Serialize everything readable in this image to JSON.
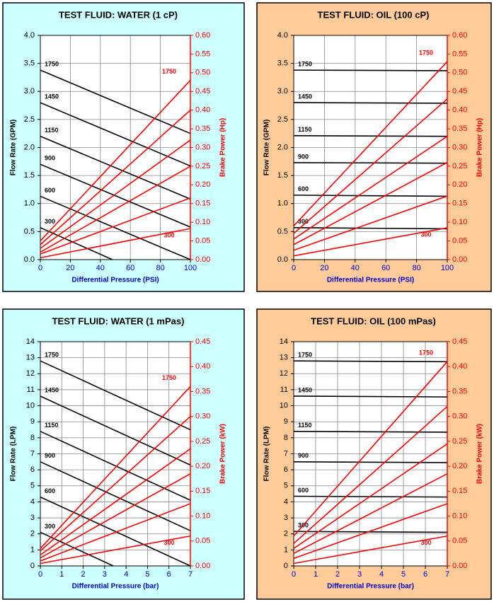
{
  "chart_data": [
    {
      "type": "line",
      "title": "TEST FLUID:  WATER (1 cP)",
      "background": "#ccffff",
      "x_label": "Differential Pressure (PSI)",
      "y_label": "Flow Rate (GPM)",
      "y2_label": "Brake Power (Hp)",
      "xlim": [
        0,
        100
      ],
      "xticks": [
        0,
        20,
        40,
        60,
        80,
        100
      ],
      "ylim": [
        0,
        4
      ],
      "yticks": [
        {
          "value": 0,
          "label": "0.0"
        },
        0.5,
        {
          "value": 1,
          "label": "1.0"
        },
        1.5,
        {
          "value": 2,
          "label": "2.0"
        },
        2.5,
        {
          "value": 3,
          "label": "3.0"
        },
        3.5,
        {
          "value": 4,
          "label": "4.0"
        }
      ],
      "y2lim": [
        0,
        0.6
      ],
      "y2ticks": [
        {
          "value": 0,
          "label": "0.00"
        },
        0.05,
        {
          "value": 0.1,
          "label": "0.10"
        },
        0.15,
        {
          "value": 0.2,
          "label": "0.20"
        },
        0.25,
        {
          "value": 0.3,
          "label": "0.30"
        },
        0.35,
        {
          "value": 0.4,
          "label": "0.40"
        },
        0.45,
        {
          "value": 0.5,
          "label": "0.50"
        },
        0.55,
        {
          "value": 0.6,
          "label": "0.60"
        }
      ],
      "grid": true,
      "series": [
        {
          "name": "1750",
          "color": "#000000",
          "x": [
            0,
            100
          ],
          "values": [
            3.38,
            2.25
          ]
        },
        {
          "name": "1450",
          "color": "#000000",
          "x": [
            0,
            100
          ],
          "values": [
            2.8,
            1.67
          ]
        },
        {
          "name": "1150",
          "color": "#000000",
          "x": [
            0,
            100
          ],
          "values": [
            2.2,
            1.08
          ]
        },
        {
          "name": "900",
          "color": "#000000",
          "x": [
            0,
            100
          ],
          "values": [
            1.7,
            0.58
          ]
        },
        {
          "name": "600",
          "color": "#000000",
          "x": [
            0,
            100
          ],
          "values": [
            1.13,
            0
          ]
        },
        {
          "name": "300",
          "color": "#000000",
          "x": [
            0,
            48
          ],
          "values": [
            0.57,
            0
          ]
        },
        {
          "name": "1750",
          "color": "#ff0000",
          "axis": "y2",
          "x": [
            0,
            100
          ],
          "values": [
            0.05,
            0.48
          ]
        },
        {
          "color": "#ff0000",
          "axis": "y2",
          "x": [
            0,
            100
          ],
          "values": [
            0.04,
            0.4
          ]
        },
        {
          "color": "#ff0000",
          "axis": "y2",
          "x": [
            0,
            100
          ],
          "values": [
            0.03,
            0.32
          ]
        },
        {
          "color": "#ff0000",
          "axis": "y2",
          "x": [
            0,
            100
          ],
          "values": [
            0.02,
            0.25
          ]
        },
        {
          "color": "#ff0000",
          "axis": "y2",
          "x": [
            0,
            100
          ],
          "values": [
            0.015,
            0.165
          ]
        },
        {
          "name": "300",
          "color": "#ff0000",
          "axis": "y2",
          "x": [
            0,
            100
          ],
          "values": [
            0.005,
            0.083
          ]
        }
      ]
    },
    {
      "type": "line",
      "title": "TEST FLUID:  OIL (100 cP)",
      "background": "#ffcc99",
      "x_label": "Differential Pressure (PSI)",
      "y_label": "Flow Rate (GPM)",
      "y2_label": "Brake Power (Hp)",
      "xlim": [
        0,
        100
      ],
      "xticks": [
        0,
        20,
        40,
        60,
        80,
        100
      ],
      "ylim": [
        0,
        4
      ],
      "yticks": [
        {
          "value": 0,
          "label": "0.0"
        },
        0.5,
        {
          "value": 1,
          "label": "1.0"
        },
        1.5,
        {
          "value": 2,
          "label": "2.0"
        },
        2.5,
        {
          "value": 3,
          "label": "3.0"
        },
        3.5,
        {
          "value": 4,
          "label": "4.0"
        }
      ],
      "y2lim": [
        0,
        0.6
      ],
      "y2ticks": [
        {
          "value": 0,
          "label": "0.00"
        },
        0.05,
        {
          "value": 0.1,
          "label": "0.10"
        },
        0.15,
        {
          "value": 0.2,
          "label": "0.20"
        },
        0.25,
        {
          "value": 0.3,
          "label": "0.30"
        },
        0.35,
        {
          "value": 0.4,
          "label": "0.40"
        },
        0.45,
        {
          "value": 0.5,
          "label": "0.50"
        },
        0.55,
        {
          "value": 0.6,
          "label": "0.60"
        }
      ],
      "grid": true,
      "series": [
        {
          "name": "1750",
          "color": "#000000",
          "x": [
            0,
            100
          ],
          "values": [
            3.38,
            3.37
          ]
        },
        {
          "name": "1450",
          "color": "#000000",
          "x": [
            0,
            100
          ],
          "values": [
            2.8,
            2.79
          ]
        },
        {
          "name": "1150",
          "color": "#000000",
          "x": [
            0,
            100
          ],
          "values": [
            2.21,
            2.2
          ]
        },
        {
          "name": "900",
          "color": "#000000",
          "x": [
            0,
            100
          ],
          "values": [
            1.73,
            1.72
          ]
        },
        {
          "name": "600",
          "color": "#000000",
          "x": [
            0,
            100
          ],
          "values": [
            1.15,
            1.13
          ]
        },
        {
          "name": "300",
          "color": "#000000",
          "x": [
            0,
            100
          ],
          "values": [
            0.57,
            0.55
          ]
        },
        {
          "name": "1750",
          "color": "#ff0000",
          "axis": "y2",
          "x": [
            0,
            100
          ],
          "values": [
            0.09,
            0.53
          ]
        },
        {
          "color": "#ff0000",
          "axis": "y2",
          "x": [
            0,
            100
          ],
          "values": [
            0.07,
            0.43
          ]
        },
        {
          "color": "#ff0000",
          "axis": "y2",
          "x": [
            0,
            100
          ],
          "values": [
            0.055,
            0.33
          ]
        },
        {
          "color": "#ff0000",
          "axis": "y2",
          "x": [
            0,
            100
          ],
          "values": [
            0.04,
            0.26
          ]
        },
        {
          "color": "#ff0000",
          "axis": "y2",
          "x": [
            0,
            100
          ],
          "values": [
            0.025,
            0.17
          ]
        },
        {
          "name": "300",
          "color": "#ff0000",
          "axis": "y2",
          "x": [
            0,
            100
          ],
          "values": [
            0.01,
            0.085
          ]
        }
      ]
    },
    {
      "type": "line",
      "title": "TEST FLUID:  WATER (1 mPas)",
      "background": "#ccffff",
      "x_label": "Differential Pressure (bar)",
      "y_label": "Flow Rate (LPM)",
      "y2_label": "Brake Power (kW)",
      "xlim": [
        0,
        7
      ],
      "xticks": [
        0,
        1,
        2,
        3,
        4,
        5,
        6,
        7
      ],
      "ylim": [
        0,
        14
      ],
      "yticks": [
        0,
        1,
        2,
        3,
        4,
        5,
        6,
        7,
        8,
        9,
        10,
        11,
        12,
        13,
        14
      ],
      "y2lim": [
        0,
        0.45
      ],
      "y2ticks": [
        {
          "value": 0,
          "label": "0.00"
        },
        0.05,
        {
          "value": 0.1,
          "label": "0.10"
        },
        0.15,
        {
          "value": 0.2,
          "label": "0.20"
        },
        0.25,
        {
          "value": 0.3,
          "label": "0.30"
        },
        0.35,
        {
          "value": 0.4,
          "label": "0.40"
        },
        0.45
      ],
      "grid": true,
      "series": [
        {
          "name": "1750",
          "color": "#000000",
          "x": [
            0,
            7
          ],
          "values": [
            12.8,
            8.5
          ]
        },
        {
          "name": "1450",
          "color": "#000000",
          "x": [
            0,
            7
          ],
          "values": [
            10.6,
            6.3
          ]
        },
        {
          "name": "1150",
          "color": "#000000",
          "x": [
            0,
            7
          ],
          "values": [
            8.4,
            4.1
          ]
        },
        {
          "name": "900",
          "color": "#000000",
          "x": [
            0,
            7
          ],
          "values": [
            6.5,
            2.2
          ]
        },
        {
          "name": "600",
          "color": "#000000",
          "x": [
            0,
            7
          ],
          "values": [
            4.3,
            0
          ]
        },
        {
          "name": "300",
          "color": "#000000",
          "x": [
            0,
            3.4
          ],
          "values": [
            2.1,
            0
          ]
        },
        {
          "name": "1750",
          "color": "#ff0000",
          "axis": "y2",
          "x": [
            0,
            7
          ],
          "values": [
            0.035,
            0.36
          ]
        },
        {
          "color": "#ff0000",
          "axis": "y2",
          "x": [
            0,
            7
          ],
          "values": [
            0.03,
            0.3
          ]
        },
        {
          "color": "#ff0000",
          "axis": "y2",
          "x": [
            0,
            7
          ],
          "values": [
            0.022,
            0.235
          ]
        },
        {
          "color": "#ff0000",
          "axis": "y2",
          "x": [
            0,
            7
          ],
          "values": [
            0.016,
            0.185
          ]
        },
        {
          "color": "#ff0000",
          "axis": "y2",
          "x": [
            0,
            7
          ],
          "values": [
            0.01,
            0.125
          ]
        },
        {
          "name": "300",
          "color": "#ff0000",
          "axis": "y2",
          "x": [
            0,
            7
          ],
          "values": [
            0.005,
            0.06
          ]
        }
      ]
    },
    {
      "type": "line",
      "title": "TEST FLUID:  OIL (100 mPas)",
      "background": "#ffcc99",
      "x_label": "Differential Pressure (bar)",
      "y_label": "Flow Rate (LPM)",
      "y2_label": "Brake Power (kW)",
      "xlim": [
        0,
        7
      ],
      "xticks": [
        0,
        1,
        2,
        3,
        4,
        5,
        6,
        7
      ],
      "ylim": [
        0,
        14
      ],
      "yticks": [
        0,
        1,
        2,
        3,
        4,
        5,
        6,
        7,
        8,
        9,
        10,
        11,
        12,
        13,
        14
      ],
      "y2lim": [
        0,
        0.45
      ],
      "y2ticks": [
        {
          "value": 0,
          "label": "0.00"
        },
        0.05,
        {
          "value": 0.1,
          "label": "0.10"
        },
        0.15,
        {
          "value": 0.2,
          "label": "0.20"
        },
        0.25,
        {
          "value": 0.3,
          "label": "0.30"
        },
        0.35,
        {
          "value": 0.4,
          "label": "0.40"
        },
        0.45
      ],
      "grid": true,
      "series": [
        {
          "name": "1750",
          "color": "#000000",
          "x": [
            0,
            7
          ],
          "values": [
            12.8,
            12.75
          ]
        },
        {
          "name": "1450",
          "color": "#000000",
          "x": [
            0,
            7
          ],
          "values": [
            10.6,
            10.55
          ]
        },
        {
          "name": "1150",
          "color": "#000000",
          "x": [
            0,
            7
          ],
          "values": [
            8.4,
            8.35
          ]
        },
        {
          "name": "900",
          "color": "#000000",
          "x": [
            0,
            7
          ],
          "values": [
            6.5,
            6.45
          ]
        },
        {
          "name": "600",
          "color": "#000000",
          "x": [
            0,
            7
          ],
          "values": [
            4.35,
            4.3
          ]
        },
        {
          "name": "300",
          "color": "#000000",
          "x": [
            0,
            7
          ],
          "values": [
            2.15,
            2.1
          ]
        },
        {
          "name": "1750",
          "color": "#ff0000",
          "axis": "y2",
          "x": [
            0,
            7
          ],
          "values": [
            0.06,
            0.41
          ]
        },
        {
          "color": "#ff0000",
          "axis": "y2",
          "x": [
            0,
            7
          ],
          "values": [
            0.045,
            0.32
          ]
        },
        {
          "color": "#ff0000",
          "axis": "y2",
          "x": [
            0,
            7
          ],
          "values": [
            0.035,
            0.245
          ]
        },
        {
          "color": "#ff0000",
          "axis": "y2",
          "x": [
            0,
            7
          ],
          "values": [
            0.025,
            0.185
          ]
        },
        {
          "color": "#ff0000",
          "axis": "y2",
          "x": [
            0,
            7
          ],
          "values": [
            0.015,
            0.125
          ]
        },
        {
          "name": "300",
          "color": "#ff0000",
          "axis": "y2",
          "x": [
            0,
            7
          ],
          "values": [
            0.005,
            0.06
          ]
        }
      ]
    }
  ]
}
